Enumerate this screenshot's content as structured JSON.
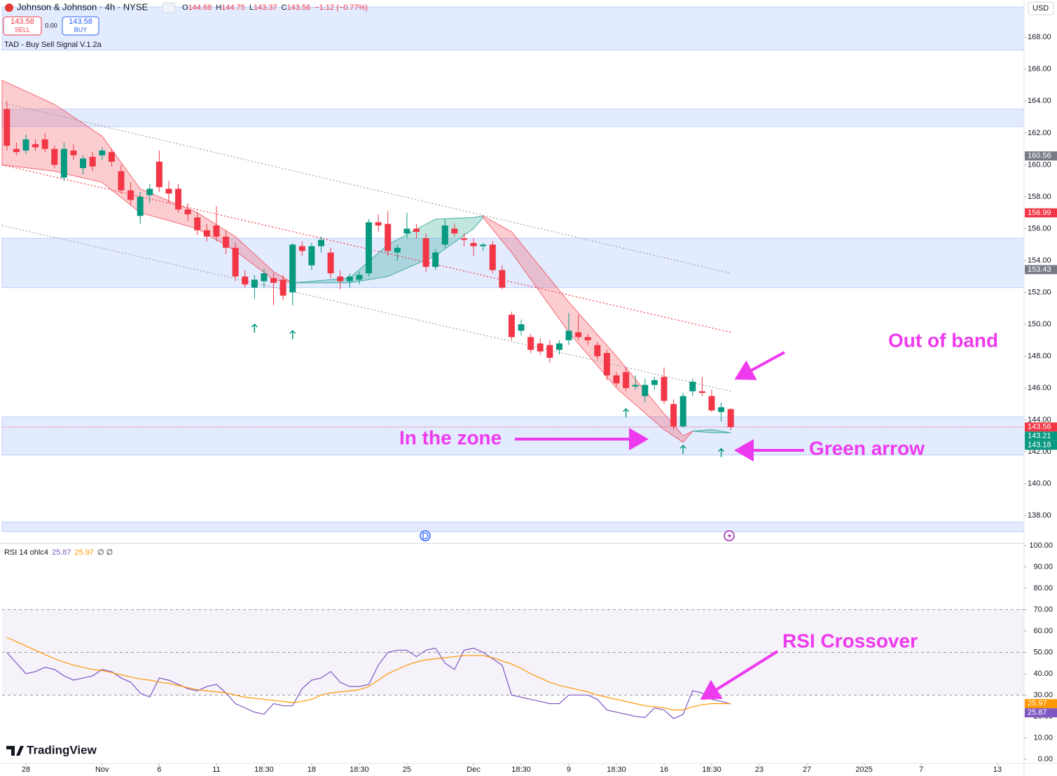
{
  "header": {
    "symbol": "Johnson & Johnson · 4h · NYSE",
    "ohlc": [
      {
        "key": "O",
        "value": "144.68"
      },
      {
        "key": "H",
        "value": "144.75"
      },
      {
        "key": "L",
        "value": "143.37"
      },
      {
        "key": "C",
        "value": "143.56"
      }
    ],
    "change": "−1.12 (−0.77%)",
    "sell_price": "143.58",
    "sell": "SELL",
    "spread": "0.00",
    "buy_price": "143.58",
    "buy": "BUY",
    "indicator": "TAD - Buy Sell Signal V.1.2a",
    "currency": "USD"
  },
  "annotations": [
    "Out of band",
    "In the zone",
    "Green arrow",
    "RSI Crossover"
  ],
  "branding": "TradingView",
  "chart_data": [
    {
      "type": "candlestick",
      "up_color": "#089981",
      "down_color": "#f23645",
      "x": [
        0,
        1,
        2,
        3,
        4,
        5,
        6,
        7,
        8,
        9,
        10,
        11,
        12,
        13,
        14,
        15,
        16,
        17,
        18,
        19,
        20,
        21,
        22,
        23,
        24,
        25,
        26,
        27,
        28,
        29,
        30,
        31,
        32,
        33,
        34,
        35,
        36,
        37,
        38,
        39,
        40,
        41,
        42,
        43,
        44,
        45,
        46,
        47,
        48,
        49,
        50,
        51,
        52,
        53,
        54,
        55,
        56,
        57,
        58,
        59,
        60,
        61,
        62,
        63,
        64,
        65,
        66,
        67,
        68,
        69,
        70,
        71,
        72,
        73,
        74,
        75,
        76
      ],
      "open": [
        163.5,
        161.0,
        160.9,
        161.3,
        161.6,
        161.0,
        159.2,
        160.9,
        159.8,
        160.5,
        160.6,
        160.8,
        159.6,
        158.4,
        156.8,
        158.1,
        160.2,
        158.5,
        158.5,
        157.2,
        156.7,
        155.9,
        156.2,
        155.5,
        154.8,
        153.0,
        152.3,
        152.7,
        152.9,
        152.8,
        152.0,
        154.9,
        153.7,
        154.9,
        154.5,
        153.0,
        152.7,
        152.8,
        153.2,
        156.4,
        156.3,
        154.5,
        155.7,
        156.0,
        155.4,
        153.6,
        155.0,
        156.0,
        155.4,
        155.1,
        154.9,
        155.0,
        153.4,
        150.6,
        149.6,
        149.2,
        148.8,
        148.7,
        148.4,
        149.0,
        149.5,
        149.2,
        148.7,
        148.2,
        146.8,
        147.0,
        146.1,
        145.5,
        146.2,
        146.7,
        145.0,
        143.6,
        145.8,
        145.8,
        145.5,
        144.5,
        144.68
      ],
      "high": [
        164.0,
        161.4,
        161.9,
        161.6,
        162.0,
        161.2,
        161.4,
        161.3,
        160.6,
        160.8,
        161.1,
        161.0,
        160.0,
        158.9,
        158.3,
        158.8,
        160.9,
        159.0,
        158.8,
        157.6,
        157.0,
        156.3,
        157.4,
        155.9,
        155.1,
        153.4,
        153.1,
        153.5,
        153.2,
        153.1,
        155.1,
        155.2,
        155.1,
        155.5,
        154.8,
        153.4,
        153.2,
        153.3,
        156.6,
        156.9,
        157.1,
        155.0,
        157.0,
        156.3,
        155.7,
        154.7,
        156.6,
        156.3,
        155.7,
        155.4,
        155.1,
        155.2,
        153.7,
        150.8,
        150.3,
        149.4,
        149.1,
        149.0,
        149.0,
        150.7,
        150.6,
        149.4,
        148.9,
        148.4,
        147.0,
        147.3,
        146.8,
        146.6,
        146.7,
        147.3,
        145.3,
        145.7,
        146.6,
        146.7,
        145.9,
        145.1,
        144.75
      ],
      "low": [
        160.9,
        160.6,
        160.7,
        160.9,
        160.8,
        159.8,
        159.0,
        160.3,
        159.4,
        159.6,
        160.3,
        159.9,
        158.2,
        157.5,
        156.3,
        157.6,
        158.3,
        157.6,
        157.0,
        156.5,
        155.6,
        155.2,
        155.2,
        154.4,
        152.7,
        152.3,
        151.6,
        152.3,
        151.2,
        151.5,
        151.2,
        154.3,
        153.4,
        154.5,
        152.9,
        152.2,
        152.3,
        152.5,
        153.0,
        155.8,
        154.3,
        154.0,
        155.4,
        155.4,
        153.3,
        153.4,
        154.8,
        155.5,
        154.9,
        154.3,
        154.6,
        153.2,
        152.2,
        149.0,
        149.3,
        148.2,
        148.1,
        147.6,
        148.1,
        148.7,
        149.0,
        148.7,
        147.8,
        146.5,
        146.1,
        145.8,
        145.9,
        145.1,
        145.9,
        145.0,
        143.4,
        143.5,
        145.5,
        145.5,
        144.5,
        143.9,
        143.37
      ],
      "close": [
        161.2,
        160.8,
        161.6,
        161.1,
        161.0,
        160.0,
        161.0,
        160.6,
        160.4,
        159.9,
        160.9,
        160.2,
        158.4,
        157.8,
        158.0,
        158.5,
        158.6,
        158.2,
        157.2,
        156.9,
        155.9,
        155.5,
        155.5,
        154.8,
        153.0,
        152.5,
        152.8,
        153.2,
        152.6,
        151.8,
        155.0,
        154.6,
        154.9,
        155.3,
        153.2,
        152.7,
        153.0,
        153.1,
        156.4,
        156.2,
        154.6,
        154.8,
        156.0,
        155.8,
        153.6,
        154.5,
        156.2,
        155.7,
        155.3,
        154.9,
        155.0,
        153.4,
        152.3,
        149.2,
        150.0,
        148.4,
        148.3,
        147.9,
        148.8,
        149.6,
        149.2,
        149.0,
        148.0,
        146.8,
        146.3,
        146.0,
        146.2,
        146.2,
        146.5,
        145.2,
        143.6,
        145.5,
        146.4,
        145.7,
        144.6,
        144.8,
        143.56
      ],
      "xlim": [
        -0.5,
        106.8
      ],
      "ylim": [
        136.3,
        169.9
      ],
      "yticks": [
        {
          "value": 138,
          "label": "138.00"
        },
        {
          "value": 140,
          "label": "140.00"
        },
        {
          "value": 142,
          "label": "142.00"
        },
        {
          "value": 144,
          "label": "144.00"
        },
        {
          "value": 146,
          "label": "146.00"
        },
        {
          "value": 148,
          "label": "148.00"
        },
        {
          "value": 150,
          "label": "150.00"
        },
        {
          "value": 152,
          "label": "152.00"
        },
        {
          "value": 154,
          "label": "154.00"
        },
        {
          "value": 156,
          "label": "156.00"
        },
        {
          "value": 158,
          "label": "158.00"
        },
        {
          "value": 160,
          "label": "160.00"
        },
        {
          "value": 162,
          "label": "162.00"
        },
        {
          "value": 164,
          "label": "164.00"
        },
        {
          "value": 166,
          "label": "166.00"
        },
        {
          "value": 168,
          "label": "168.00"
        }
      ],
      "zones": [
        {
          "low": 167.2,
          "high": 169.9
        },
        {
          "low": 162.4,
          "high": 163.5
        },
        {
          "low": 152.3,
          "high": 155.4
        },
        {
          "low": 141.8,
          "high": 144.2
        },
        {
          "low": 137.0,
          "high": 137.6
        }
      ],
      "zone_color": "#2962ff",
      "trend_lines": [
        {
          "x": [
            -0.5,
            76
          ],
          "y": [
            163.9,
            153.2
          ],
          "color": "#9e9e9e"
        },
        {
          "x": [
            -0.5,
            76
          ],
          "y": [
            160.0,
            149.5
          ],
          "color": "#f23645"
        },
        {
          "x": [
            -0.5,
            76
          ],
          "y": [
            156.2,
            145.8
          ],
          "color": "#9e9e9e"
        }
      ],
      "ribbons": [
        {
          "color": "#f23645",
          "x": [
            -0.5,
            5,
            10,
            14,
            20,
            24,
            28,
            30
          ],
          "upper": [
            165.3,
            163.8,
            161.8,
            158.5,
            157.0,
            155.5,
            153.3,
            152.6
          ],
          "lower": [
            160.0,
            159.6,
            158.9,
            157.0,
            156.0,
            154.6,
            152.8,
            152.6
          ]
        },
        {
          "color": "#089981",
          "x": [
            30,
            36,
            40,
            45,
            49,
            50
          ],
          "upper": [
            152.6,
            152.9,
            155.0,
            156.6,
            156.7,
            156.8
          ],
          "lower": [
            152.6,
            152.6,
            153.0,
            154.3,
            156.0,
            156.7
          ]
        },
        {
          "color": "#f23645",
          "x": [
            50,
            53,
            59,
            64,
            69,
            71,
            72
          ],
          "upper": [
            156.8,
            155.8,
            151.4,
            148.0,
            144.4,
            143.0,
            143.3
          ],
          "lower": [
            156.7,
            154.5,
            149.5,
            146.0,
            143.4,
            142.6,
            143.3
          ]
        },
        {
          "color": "#089981",
          "x": [
            72,
            74,
            76
          ],
          "upper": [
            143.3,
            143.4,
            143.2
          ],
          "lower": [
            143.3,
            143.2,
            143.2
          ]
        }
      ],
      "signals": {
        "color": "#089981",
        "x": [
          26,
          30,
          65,
          71,
          75
        ],
        "y": [
          150.0,
          149.6,
          144.7,
          142.4,
          142.2
        ]
      },
      "price_labels": [
        {
          "value": 160.56,
          "color": "#787b86"
        },
        {
          "value": 156.99,
          "color": "#f23645"
        },
        {
          "value": 153.43,
          "color": "#787b86"
        },
        {
          "value": 143.56,
          "color": "#f23645",
          "dotted_line": true
        },
        {
          "value": 143.21,
          "color": "#089981"
        },
        {
          "value": 143.18,
          "color": "#089981"
        }
      ]
    },
    {
      "type": "line",
      "legend": "RSI 14 ohlc4",
      "legend_extra": "∅ ∅",
      "x": [
        0,
        1,
        2,
        3,
        4,
        5,
        6,
        7,
        8,
        9,
        10,
        11,
        12,
        13,
        14,
        15,
        16,
        17,
        18,
        19,
        20,
        21,
        22,
        23,
        24,
        25,
        26,
        27,
        28,
        29,
        30,
        31,
        32,
        33,
        34,
        35,
        36,
        37,
        38,
        39,
        40,
        41,
        42,
        43,
        44,
        45,
        46,
        47,
        48,
        49,
        50,
        51,
        52,
        53,
        54,
        55,
        56,
        57,
        58,
        59,
        60,
        61,
        62,
        63,
        64,
        65,
        66,
        67,
        68,
        69,
        70,
        71,
        72,
        73,
        74,
        75,
        76
      ],
      "series": [
        {
          "color": "#7e57c2",
          "values": [
            50,
            45,
            40,
            41,
            43,
            42,
            39,
            37,
            38,
            39,
            42,
            41,
            38,
            36,
            31,
            29,
            38,
            37,
            35,
            33,
            32,
            34,
            35,
            31,
            26,
            24,
            22,
            21,
            26,
            25,
            25,
            33,
            37,
            38,
            41,
            36,
            34,
            34,
            35,
            44,
            50,
            51,
            51,
            48,
            51,
            52,
            45,
            42,
            51,
            52,
            50,
            47,
            44,
            30,
            29,
            28,
            27,
            26,
            26,
            30,
            30,
            30,
            28,
            23,
            22,
            21,
            20,
            19.5,
            24,
            23,
            19,
            21,
            32,
            31,
            28,
            27,
            25.87
          ]
        },
        {
          "color": "#ff9800",
          "values": [
            57,
            55,
            53,
            51,
            49,
            47,
            45.5,
            44,
            43,
            42,
            41.5,
            40.5,
            39.5,
            38.5,
            37.5,
            37,
            36,
            35.5,
            34.5,
            33.5,
            32.5,
            32,
            31.5,
            31,
            30,
            29,
            28.5,
            28,
            27.5,
            27,
            26.5,
            27,
            28,
            30,
            31,
            31.5,
            32,
            32.5,
            34,
            37,
            40,
            42,
            44,
            45.5,
            46.5,
            47,
            47.5,
            48,
            48.5,
            48.5,
            48.5,
            47.5,
            46,
            44.5,
            42.5,
            40,
            38,
            36,
            34.5,
            33.5,
            32.5,
            31.5,
            30,
            29,
            28,
            27,
            26,
            25,
            24.5,
            24,
            23,
            23,
            24.5,
            25.5,
            26,
            26,
            25.97
          ]
        }
      ],
      "levels": [
        30,
        50,
        70
      ],
      "band_color": "#7e57c2",
      "xlim": [
        -0.5,
        106.8
      ],
      "ylim": [
        -2,
        101
      ],
      "yticks": [
        {
          "value": 0,
          "label": "0.00"
        },
        {
          "value": 10,
          "label": "10.00"
        },
        {
          "value": 20,
          "label": "20.00"
        },
        {
          "value": 30,
          "label": "30.00"
        },
        {
          "value": 40,
          "label": "40.00"
        },
        {
          "value": 50,
          "label": "50.00"
        },
        {
          "value": 60,
          "label": "60.00"
        },
        {
          "value": 70,
          "label": "70.00"
        },
        {
          "value": 80,
          "label": "80.00"
        },
        {
          "value": 90,
          "label": "90.00"
        },
        {
          "value": 100,
          "label": "100.00"
        }
      ],
      "xticks": [
        {
          "value": 2,
          "label": "28"
        },
        {
          "value": 10,
          "label": "Nov"
        },
        {
          "value": 16,
          "label": "6"
        },
        {
          "value": 22,
          "label": "11"
        },
        {
          "value": 27,
          "label": "18:30"
        },
        {
          "value": 32,
          "label": "18"
        },
        {
          "value": 37,
          "label": "18:30"
        },
        {
          "value": 42,
          "label": "25"
        },
        {
          "value": 49,
          "label": "Dec"
        },
        {
          "value": 54,
          "label": "18:30"
        },
        {
          "value": 59,
          "label": "9"
        },
        {
          "value": 64,
          "label": "18:30"
        },
        {
          "value": 69,
          "label": "16"
        },
        {
          "value": 74,
          "label": "18:30"
        },
        {
          "value": 79,
          "label": "23"
        },
        {
          "value": 84,
          "label": "27"
        },
        {
          "value": 90,
          "label": "2025"
        },
        {
          "value": 96,
          "label": "7"
        },
        {
          "value": 104,
          "label": "13"
        }
      ]
    }
  ]
}
